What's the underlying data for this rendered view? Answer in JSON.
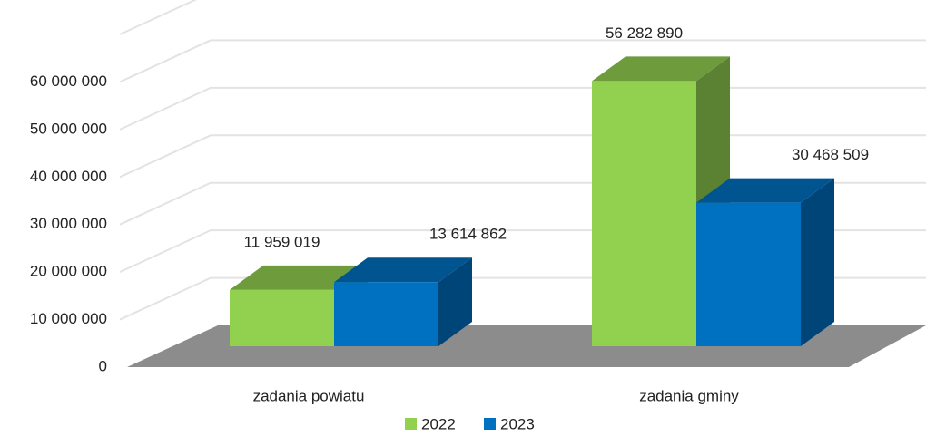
{
  "chart_data": {
    "type": "bar3d",
    "categories": [
      "zadania powiatu",
      "zadania gminy"
    ],
    "series": [
      {
        "name": "2022",
        "color": "#92d050",
        "values": [
          11959019,
          56282890
        ],
        "value_labels": [
          "11 959 019",
          "56 282 890"
        ]
      },
      {
        "name": "2023",
        "color": "#0070c0",
        "values": [
          13614862,
          30468509
        ],
        "value_labels": [
          "13 614 862",
          "30 468 509"
        ]
      }
    ],
    "ylim": [
      0,
      70000000
    ],
    "yticks": [
      0,
      {
        "value": 10000000,
        "label": "10 000 000"
      },
      {
        "value": 20000000,
        "label": "20 000 000"
      },
      {
        "value": 30000000,
        "label": "30 000 000"
      },
      {
        "value": 40000000,
        "label": "40 000 000"
      },
      {
        "value": 50000000,
        "label": "50 000 000"
      },
      {
        "value": 60000000,
        "label": "60 000 000"
      }
    ],
    "grid": true,
    "legend": "bottom"
  }
}
